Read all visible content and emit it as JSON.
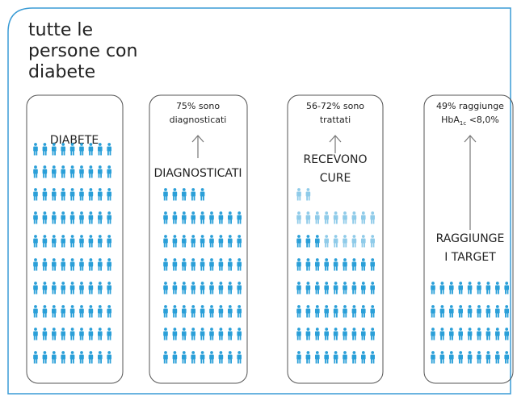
{
  "title_lines": [
    "tutte le",
    "persone con",
    "diabete"
  ],
  "columns": [
    {
      "label_lines": [
        "DIABETE"
      ]
    },
    {
      "note_lines": [
        "75%  sono",
        "diagnosticati"
      ],
      "label_lines": [
        "DIAGNOSTICATI"
      ]
    },
    {
      "note_lines": [
        "56-72% sono",
        "trattati"
      ],
      "label_lines": [
        "RECEVONO",
        "CURE"
      ]
    },
    {
      "note_lines": [
        "49%  raggiunge"
      ],
      "note_parts": [
        "HbA",
        "1c",
        " <8,0%"
      ],
      "label_lines": [
        "RAGGIUNGE",
        "I TARGET"
      ]
    }
  ]
}
